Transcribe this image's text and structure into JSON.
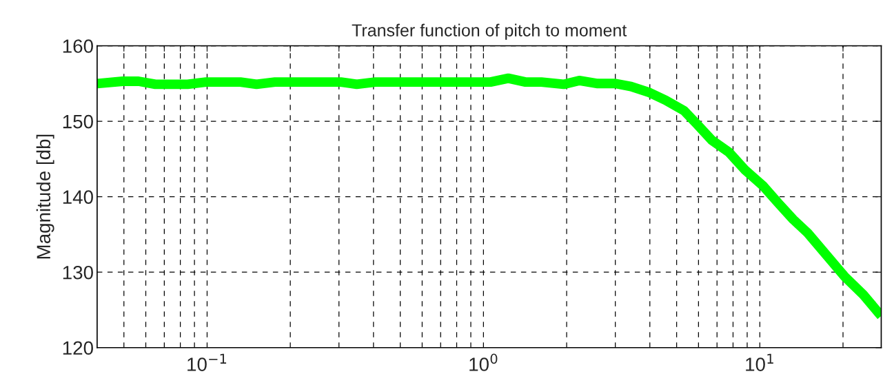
{
  "chart_data": {
    "type": "line",
    "title": "Transfer function of pitch to moment",
    "ylabel": "Magnitude [db]",
    "x": [
      0.04,
      0.0495,
      0.0565,
      0.065,
      0.085,
      0.099,
      0.132,
      0.151,
      0.176,
      0.305,
      0.348,
      0.406,
      1.0,
      1.06,
      1.23,
      1.42,
      1.62,
      1.95,
      2.22,
      2.59,
      3.0,
      3.42,
      3.99,
      4.56,
      5.32,
      5.93,
      6.7,
      7.73,
      8.81,
      10.3,
      11.7,
      13.2,
      14.9,
      20.3,
      23.7,
      27.5
    ],
    "series": [
      {
        "color": "#00ff00",
        "values": [
          155.0,
          155.3,
          155.3,
          154.9,
          154.9,
          155.2,
          155.2,
          154.9,
          155.2,
          155.2,
          154.9,
          155.2,
          155.2,
          155.2,
          155.7,
          155.2,
          155.2,
          154.9,
          155.4,
          155.0,
          155.0,
          154.6,
          153.8,
          152.8,
          151.4,
          149.6,
          147.5,
          145.9,
          143.6,
          141.4,
          139.1,
          137.0,
          135.2,
          129.4,
          127.0,
          124.2
        ]
      }
    ],
    "log": "x",
    "xlim": [
      0.04,
      27.5
    ],
    "ylim": [
      120,
      160
    ],
    "yticks": [
      120,
      130,
      140,
      150,
      160
    ],
    "xticks": [
      {
        "value": 0.05,
        "label": null
      },
      {
        "value": 0.06,
        "label": null
      },
      {
        "value": 0.07,
        "label": null
      },
      {
        "value": 0.08,
        "label": null
      },
      {
        "value": 0.09,
        "label": null
      },
      {
        "value": 0.1,
        "label": "10$^{−1}$"
      },
      {
        "value": 0.2,
        "label": null
      },
      {
        "value": 0.3,
        "label": null
      },
      {
        "value": 0.4,
        "label": null
      },
      {
        "value": 0.5,
        "label": null
      },
      {
        "value": 0.6,
        "label": null
      },
      {
        "value": 0.7,
        "label": null
      },
      {
        "value": 0.8,
        "label": null
      },
      {
        "value": 0.9,
        "label": null
      },
      {
        "value": 1,
        "label": "10$^{0}$"
      },
      {
        "value": 2,
        "label": null
      },
      {
        "value": 3,
        "label": null
      },
      {
        "value": 4,
        "label": null
      },
      {
        "value": 5,
        "label": null
      },
      {
        "value": 6,
        "label": null
      },
      {
        "value": 7,
        "label": null
      },
      {
        "value": 8,
        "label": null
      },
      {
        "value": 9,
        "label": null
      },
      {
        "value": 10,
        "label": "10$^{1}$"
      },
      {
        "value": 20,
        "label": null
      }
    ],
    "grid": true,
    "line_style": "solid",
    "marker": "none"
  }
}
